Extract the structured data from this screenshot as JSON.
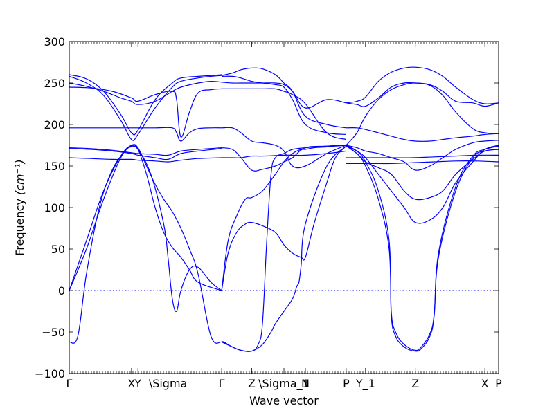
{
  "chart_data": {
    "type": "line",
    "title": "",
    "xlabel": "Wave vector",
    "ylabel": "Frequency",
    "ylabel_unit": "(cm⁻¹)",
    "ylim": [
      -100,
      300
    ],
    "yticks": [
      -100,
      -50,
      0,
      50,
      100,
      150,
      200,
      250,
      300
    ],
    "ytick_labels": [
      "−100",
      "−50",
      "0",
      "50",
      "100",
      "150",
      "200",
      "250",
      "300"
    ],
    "xlim": [
      0,
      1
    ],
    "xticks": [
      {
        "pos": 0.0,
        "label": "Γ"
      },
      {
        "pos": 0.145,
        "label": "X"
      },
      {
        "pos": 0.16,
        "label": "Y"
      },
      {
        "pos": 0.23,
        "label": "\\Sigma"
      },
      {
        "pos": 0.355,
        "label": "Γ"
      },
      {
        "pos": 0.425,
        "label": "Z"
      },
      {
        "pos": 0.5,
        "label": "\\Sigma_1"
      },
      {
        "pos": 0.55,
        "label": "N"
      },
      {
        "pos": 0.645,
        "label": "P"
      },
      {
        "pos": 0.69,
        "label": "Y_1"
      },
      {
        "pos": 0.806,
        "label": "Z"
      },
      {
        "pos": 0.968,
        "label": "X"
      },
      {
        "pos": 1.0,
        "label": "P"
      }
    ],
    "zero_line": true,
    "line_color": "#0000ff",
    "series": [
      {
        "x": [
          0,
          0.04,
          0.08,
          0.12,
          0.145,
          0.16,
          0.2,
          0.24,
          0.26,
          0.3,
          0.33,
          0.355
        ],
        "values": [
          260,
          255,
          240,
          212,
          190,
          193,
          230,
          250,
          256,
          258,
          259,
          260
        ]
      },
      {
        "x": [
          0,
          0.04,
          0.08,
          0.12,
          0.145,
          0.16,
          0.2,
          0.24,
          0.26,
          0.3,
          0.33,
          0.355
        ],
        "values": [
          258,
          250,
          235,
          205,
          182,
          188,
          220,
          245,
          252,
          256,
          258,
          259
        ]
      },
      {
        "x": [
          0,
          0.04,
          0.08,
          0.12,
          0.145,
          0.16,
          0.2,
          0.24,
          0.26,
          0.3,
          0.33,
          0.355
        ],
        "values": [
          250,
          246,
          240,
          232,
          228,
          224,
          228,
          240,
          245,
          250,
          252,
          251
        ]
      },
      {
        "x": [
          0,
          0.05,
          0.1,
          0.145,
          0.16,
          0.2,
          0.24,
          0.25,
          0.26,
          0.28,
          0.3,
          0.33,
          0.355
        ],
        "values": [
          245,
          244,
          240,
          232,
          228,
          236,
          240,
          230,
          185,
          215,
          238,
          242,
          243
        ]
      },
      {
        "x": [
          0,
          0.05,
          0.1,
          0.145,
          0.16,
          0.2,
          0.24,
          0.25,
          0.26,
          0.28,
          0.3,
          0.33,
          0.355
        ],
        "values": [
          196,
          196,
          196,
          196,
          196,
          196,
          196,
          190,
          180,
          190,
          195,
          196,
          196
        ]
      },
      {
        "x": [
          0,
          0.05,
          0.1,
          0.145,
          0.16,
          0.2,
          0.23,
          0.26,
          0.3,
          0.355
        ],
        "values": [
          172,
          171,
          169,
          166,
          165,
          164,
          163,
          168,
          170,
          172
        ]
      },
      {
        "x": [
          0,
          0.05,
          0.1,
          0.145,
          0.16,
          0.2,
          0.23,
          0.26,
          0.3,
          0.355
        ],
        "values": [
          171,
          170,
          168,
          165,
          163,
          160,
          158,
          165,
          168,
          171
        ]
      },
      {
        "x": [
          0,
          0.05,
          0.1,
          0.145,
          0.16,
          0.2,
          0.23,
          0.26,
          0.3,
          0.355
        ],
        "values": [
          160,
          159,
          158,
          158,
          157,
          156,
          155,
          157,
          159,
          160
        ]
      },
      {
        "x": [
          0,
          0.02,
          0.04,
          0.07,
          0.1,
          0.13,
          0.145,
          0.16,
          0.19,
          0.22,
          0.23,
          0.24,
          0.25,
          0.26,
          0.28,
          0.3,
          0.33,
          0.355
        ],
        "values": [
          -62,
          -55,
          20,
          100,
          145,
          168,
          173,
          170,
          140,
          80,
          40,
          -10,
          -25,
          0,
          25,
          28,
          10,
          0
        ]
      },
      {
        "x": [
          0,
          0.04,
          0.08,
          0.12,
          0.145,
          0.16,
          0.18,
          0.2,
          0.22,
          0.24,
          0.26,
          0.28,
          0.3,
          0.355
        ],
        "values": [
          0,
          50,
          110,
          160,
          174,
          170,
          140,
          100,
          70,
          52,
          40,
          25,
          10,
          0
        ]
      },
      {
        "x": [
          0,
          0.04,
          0.08,
          0.12,
          0.145,
          0.16,
          0.18,
          0.2,
          0.22,
          0.24,
          0.26,
          0.28,
          0.3,
          0.33,
          0.355
        ],
        "values": [
          0,
          60,
          120,
          162,
          175,
          172,
          150,
          128,
          110,
          95,
          75,
          50,
          20,
          -55,
          -62
        ]
      },
      {
        "x": [
          0.355,
          0.38,
          0.4,
          0.425,
          0.45,
          0.48,
          0.5,
          0.52,
          0.55,
          0.6,
          0.645
        ],
        "values": [
          196,
          196,
          190,
          180,
          178,
          175,
          168,
          150,
          150,
          165,
          175
        ]
      },
      {
        "x": [
          0.355,
          0.38,
          0.4,
          0.425,
          0.45,
          0.48,
          0.5,
          0.52,
          0.55,
          0.6,
          0.645
        ],
        "values": [
          172,
          170,
          160,
          145,
          146,
          150,
          155,
          160,
          172,
          174,
          175
        ]
      },
      {
        "x": [
          0.355,
          0.38,
          0.4,
          0.425,
          0.45,
          0.5,
          0.52,
          0.55,
          0.6,
          0.645
        ],
        "values": [
          160,
          160,
          160,
          162,
          162,
          163,
          163,
          163,
          165,
          168
        ]
      },
      {
        "x": [
          0.355,
          0.38,
          0.4,
          0.425,
          0.45,
          0.48,
          0.5,
          0.52,
          0.55,
          0.6,
          0.645
        ],
        "values": [
          259,
          262,
          266,
          268,
          267,
          260,
          250,
          240,
          210,
          200,
          196
        ]
      },
      {
        "x": [
          0.355,
          0.38,
          0.4,
          0.425,
          0.45,
          0.48,
          0.5,
          0.52,
          0.55,
          0.6,
          0.645
        ],
        "values": [
          258,
          258,
          256,
          252,
          250,
          248,
          245,
          230,
          200,
          190,
          188
        ]
      },
      {
        "x": [
          0.355,
          0.38,
          0.4,
          0.425,
          0.45,
          0.48,
          0.5,
          0.52,
          0.55,
          0.6,
          0.645
        ],
        "values": [
          251,
          250,
          250,
          250,
          250,
          250,
          248,
          240,
          220,
          230,
          226
        ]
      },
      {
        "x": [
          0.355,
          0.38,
          0.4,
          0.425,
          0.45,
          0.48,
          0.5,
          0.52,
          0.55,
          0.6,
          0.645
        ],
        "values": [
          243,
          243,
          243,
          243,
          243,
          243,
          240,
          236,
          225,
          190,
          182
        ]
      },
      {
        "x": [
          0.355,
          0.37,
          0.39,
          0.41,
          0.425,
          0.45,
          0.48,
          0.5,
          0.52,
          0.54,
          0.55,
          0.57,
          0.6,
          0.62,
          0.645
        ],
        "values": [
          0,
          60,
          90,
          110,
          112,
          120,
          140,
          155,
          165,
          170,
          170,
          172,
          173,
          174,
          175
        ]
      },
      {
        "x": [
          0.355,
          0.37,
          0.39,
          0.41,
          0.425,
          0.45,
          0.48,
          0.5,
          0.52,
          0.54,
          0.55,
          0.57,
          0.6,
          0.62,
          0.645
        ],
        "values": [
          0,
          45,
          70,
          80,
          82,
          78,
          70,
          55,
          45,
          40,
          40,
          80,
          130,
          160,
          174
        ]
      },
      {
        "x": [
          0.355,
          0.36,
          0.38,
          0.4,
          0.425,
          0.44,
          0.45,
          0.46,
          0.47,
          0.48,
          0.5,
          0.52,
          0.55,
          0.6,
          0.645
        ],
        "values": [
          -62,
          -62,
          -68,
          -72,
          -73,
          -65,
          -40,
          60,
          140,
          160,
          165,
          170,
          172,
          174,
          175
        ]
      },
      {
        "x": [
          0.355,
          0.38,
          0.4,
          0.425,
          0.45,
          0.47,
          0.48,
          0.5,
          0.52,
          0.53,
          0.535,
          0.54,
          0.55,
          0.6,
          0.645
        ],
        "values": [
          -62,
          -68,
          -72,
          -73,
          -65,
          -50,
          -40,
          -25,
          -10,
          5,
          10,
          30,
          80,
          150,
          174
        ]
      },
      {
        "x": [
          0.645,
          0.67,
          0.69,
          0.72,
          0.75,
          0.78,
          0.806,
          0.84,
          0.87,
          0.9,
          0.94,
          0.968,
          1.0
        ],
        "values": [
          226,
          228,
          233,
          252,
          263,
          268,
          269,
          266,
          258,
          245,
          230,
          225,
          226
        ]
      },
      {
        "x": [
          0.645,
          0.67,
          0.69,
          0.72,
          0.75,
          0.78,
          0.806,
          0.84,
          0.87,
          0.9,
          0.94,
          0.968,
          1.0
        ],
        "values": [
          226,
          224,
          222,
          232,
          245,
          250,
          250,
          248,
          240,
          228,
          226,
          222,
          226
        ]
      },
      {
        "x": [
          0.645,
          0.67,
          0.69,
          0.72,
          0.75,
          0.78,
          0.806,
          0.84,
          0.87,
          0.9,
          0.94,
          0.968,
          1.0
        ],
        "values": [
          175,
          190,
          210,
          230,
          242,
          248,
          250,
          247,
          235,
          215,
          195,
          190,
          189
        ]
      },
      {
        "x": [
          0.645,
          0.67,
          0.69,
          0.72,
          0.75,
          0.78,
          0.806,
          0.84,
          0.87,
          0.9,
          0.94,
          0.968,
          1.0
        ],
        "values": [
          196,
          196,
          194,
          190,
          186,
          182,
          180,
          180,
          182,
          184,
          186,
          188,
          189
        ]
      },
      {
        "x": [
          0.645,
          0.67,
          0.69,
          0.72,
          0.75,
          0.78,
          0.806,
          0.84,
          0.87,
          0.9,
          0.94,
          0.968,
          1.0
        ],
        "values": [
          175,
          172,
          168,
          165,
          160,
          155,
          145,
          150,
          160,
          170,
          178,
          180,
          181
        ]
      },
      {
        "x": [
          0.645,
          0.67,
          0.69,
          0.72,
          0.75,
          0.78,
          0.806,
          0.84,
          0.87,
          0.9,
          0.94,
          0.968,
          1.0
        ],
        "values": [
          174,
          168,
          160,
          140,
          120,
          100,
          82,
          85,
          100,
          130,
          155,
          170,
          175
        ]
      },
      {
        "x": [
          0.645,
          0.67,
          0.69,
          0.72,
          0.75,
          0.78,
          0.806,
          0.84,
          0.87,
          0.9,
          0.94,
          0.968,
          1.0
        ],
        "values": [
          174,
          165,
          155,
          148,
          140,
          120,
          110,
          112,
          120,
          140,
          158,
          168,
          170
        ]
      },
      {
        "x": [
          0.645,
          0.7,
          0.75,
          0.8,
          0.85,
          0.9,
          0.95,
          1.0
        ],
        "values": [
          160,
          160,
          160,
          160,
          161,
          162,
          163,
          163
        ]
      },
      {
        "x": [
          0.645,
          0.7,
          0.75,
          0.8,
          0.85,
          0.9,
          0.95,
          1.0
        ],
        "values": [
          153,
          153,
          153,
          154,
          155,
          156,
          156,
          155
        ]
      },
      {
        "x": [
          0.645,
          0.67,
          0.69,
          0.72,
          0.745,
          0.75,
          0.76,
          0.78,
          0.806,
          0.82,
          0.84,
          0.85,
          0.86,
          0.9,
          0.94,
          0.968,
          1.0
        ],
        "values": [
          174,
          165,
          150,
          110,
          50,
          -30,
          -55,
          -68,
          -73,
          -70,
          -55,
          -30,
          40,
          120,
          160,
          168,
          170
        ]
      },
      {
        "x": [
          0.645,
          0.67,
          0.69,
          0.72,
          0.745,
          0.75,
          0.76,
          0.78,
          0.806,
          0.82,
          0.84,
          0.85,
          0.86,
          0.9,
          0.94,
          0.968,
          1.0
        ],
        "values": [
          175,
          168,
          155,
          120,
          60,
          -25,
          -50,
          -65,
          -72,
          -68,
          -52,
          -28,
          45,
          125,
          162,
          170,
          174
        ]
      }
    ]
  }
}
